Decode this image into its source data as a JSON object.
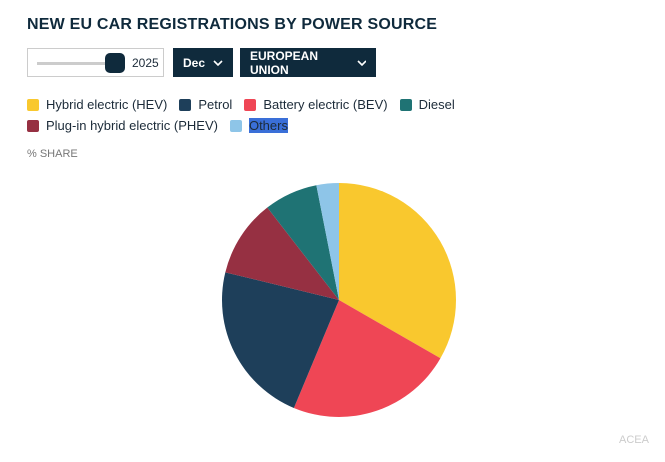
{
  "controls": {
    "year": "2025",
    "month": "Dec",
    "region": "EUROPEAN UNION"
  },
  "chart_data": {
    "type": "pie",
    "title": "NEW EU CAR REGISTRATIONS BY POWER SOURCE",
    "value_label": "% SHARE",
    "source": "ACEA",
    "categories": [
      "Hybrid electric (HEV)",
      "Battery electric (BEV)",
      "Petrol",
      "Plug-in hybrid electric (PHEV)",
      "Diesel",
      "Others"
    ],
    "values": [
      33.3,
      23,
      22.5,
      10.7,
      7.4,
      3.1
    ],
    "colors": [
      "#f9c82e",
      "#ef4655",
      "#1e3f5a",
      "#963042",
      "#1f7374",
      "#8ec5e8"
    ]
  }
}
